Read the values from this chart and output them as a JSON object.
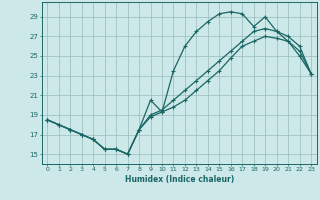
{
  "xlabel": "Humidex (Indice chaleur)",
  "xlim": [
    -0.5,
    23.5
  ],
  "ylim": [
    14.0,
    30.5
  ],
  "xticks": [
    0,
    1,
    2,
    3,
    4,
    5,
    6,
    7,
    8,
    9,
    10,
    11,
    12,
    13,
    14,
    15,
    16,
    17,
    18,
    19,
    20,
    21,
    22,
    23
  ],
  "yticks": [
    15,
    17,
    19,
    21,
    23,
    25,
    27,
    29
  ],
  "background_color": "#cce8e8",
  "grid_color": "#99bbbb",
  "line_color": "#1a6666",
  "line1_x": [
    0,
    1,
    2,
    3,
    4,
    5,
    6,
    7,
    8,
    9,
    10,
    11,
    12,
    13,
    14,
    15,
    16,
    17,
    18,
    19,
    20,
    21,
    22,
    23
  ],
  "line1_y": [
    18.5,
    18.0,
    17.5,
    17.0,
    16.5,
    15.5,
    15.5,
    15.0,
    17.5,
    20.5,
    19.3,
    23.5,
    26.0,
    27.5,
    28.5,
    29.3,
    29.5,
    29.3,
    28.0,
    29.0,
    27.5,
    26.5,
    25.0,
    23.2
  ],
  "line2_x": [
    0,
    1,
    2,
    3,
    4,
    5,
    6,
    7,
    8,
    9,
    10,
    11,
    12,
    13,
    14,
    15,
    16,
    17,
    18,
    19,
    20,
    21,
    22,
    23
  ],
  "line2_y": [
    18.5,
    18.0,
    17.5,
    17.0,
    16.5,
    15.5,
    15.5,
    15.0,
    17.5,
    19.0,
    19.5,
    20.5,
    21.5,
    22.5,
    23.5,
    24.5,
    25.5,
    26.5,
    27.5,
    27.8,
    27.5,
    27.0,
    26.0,
    23.2
  ],
  "line3_x": [
    0,
    1,
    2,
    3,
    4,
    5,
    6,
    7,
    8,
    9,
    10,
    11,
    12,
    13,
    14,
    15,
    16,
    17,
    18,
    19,
    20,
    21,
    22,
    23
  ],
  "line3_y": [
    18.5,
    18.0,
    17.5,
    17.0,
    16.5,
    15.5,
    15.5,
    15.0,
    17.5,
    18.8,
    19.3,
    19.8,
    20.5,
    21.5,
    22.5,
    23.5,
    24.8,
    26.0,
    26.5,
    27.0,
    26.8,
    26.5,
    25.5,
    23.2
  ]
}
